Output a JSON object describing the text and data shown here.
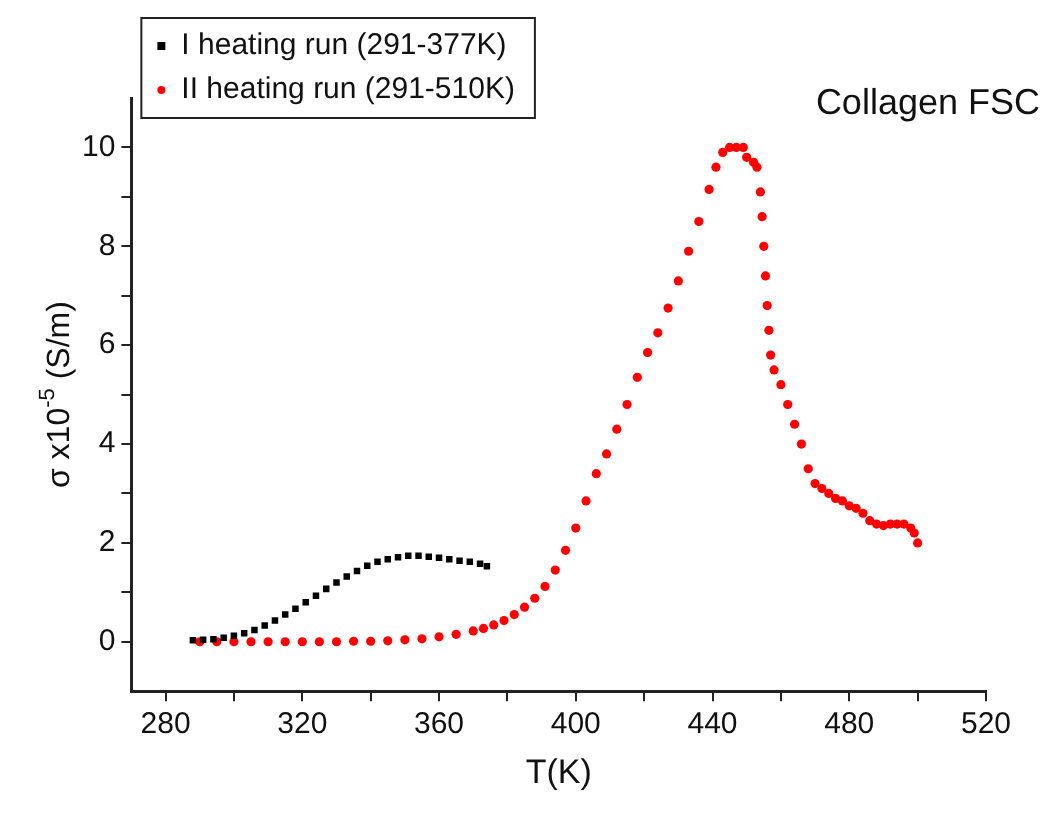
{
  "chart_data": {
    "type": "scatter",
    "title": "Collagen FSC",
    "xlabel": "T(K)",
    "ylabel": "σ x10$^{-5}$ (S/m)",
    "xlim": [
      270,
      520
    ],
    "xticks": [
      {
        "value": 280,
        "label": "280"
      },
      {
        "value": 300,
        "label": null
      },
      {
        "value": 320,
        "label": "320"
      },
      {
        "value": 340,
        "label": null
      },
      {
        "value": 360,
        "label": "360"
      },
      {
        "value": 380,
        "label": null
      },
      {
        "value": 400,
        "label": "400"
      },
      {
        "value": 420,
        "label": null
      },
      {
        "value": 440,
        "label": "440"
      },
      {
        "value": 460,
        "label": null
      },
      {
        "value": 480,
        "label": "480"
      },
      {
        "value": 500,
        "label": null
      },
      {
        "value": 520,
        "label": "520"
      }
    ],
    "ylim": [
      -1,
      11
    ],
    "yticks": [
      {
        "value": 0,
        "label": "0"
      },
      {
        "value": 1,
        "label": null
      },
      {
        "value": 2,
        "label": "2"
      },
      {
        "value": 3,
        "label": null
      },
      {
        "value": 4,
        "label": "4"
      },
      {
        "value": 5,
        "label": null
      },
      {
        "value": 6,
        "label": "6"
      },
      {
        "value": 7,
        "label": null
      },
      {
        "value": 8,
        "label": "8"
      },
      {
        "value": 9,
        "label": null
      },
      {
        "value": 10,
        "label": "10"
      }
    ],
    "grid": false,
    "legend": "top left",
    "series": [
      {
        "name": "I heating run (291-377K)",
        "color": "#000000",
        "marker": "square",
        "x": [
          288,
          291,
          294,
          297,
          300,
          303,
          306,
          309,
          312,
          315,
          318,
          321,
          324,
          327,
          330,
          333,
          336,
          339,
          342,
          345,
          348,
          351,
          354,
          357,
          360,
          363,
          366,
          369,
          372,
          374
        ],
        "values": [
          0.03,
          0.04,
          0.05,
          0.08,
          0.12,
          0.17,
          0.24,
          0.33,
          0.43,
          0.55,
          0.67,
          0.8,
          0.93,
          1.07,
          1.2,
          1.32,
          1.43,
          1.54,
          1.62,
          1.67,
          1.71,
          1.74,
          1.74,
          1.72,
          1.7,
          1.67,
          1.64,
          1.62,
          1.58,
          1.53
        ]
      },
      {
        "name": "II heating run (291-510K)",
        "color": "#ff0000",
        "marker": "circle",
        "x": [
          290,
          295,
          300,
          305,
          310,
          315,
          320,
          325,
          330,
          335,
          340,
          345,
          350,
          355,
          360,
          365,
          370,
          373,
          376,
          379,
          382,
          385,
          388,
          391,
          394,
          397,
          400,
          403,
          406,
          409,
          412,
          415,
          418,
          421,
          424,
          427,
          430,
          433,
          436,
          439,
          441,
          443,
          445,
          447,
          449,
          450,
          452,
          453,
          454,
          454.5,
          455,
          455.5,
          456,
          456.5,
          457,
          458,
          460,
          462,
          464,
          466,
          468,
          470,
          472,
          474,
          476,
          478,
          480,
          482,
          484,
          486,
          488,
          490,
          492,
          494,
          496,
          498,
          499,
          500
        ],
        "values": [
          0,
          0,
          0,
          0,
          0,
          0,
          0,
          0,
          0,
          0.01,
          0.01,
          0.02,
          0.04,
          0.06,
          0.1,
          0.15,
          0.22,
          0.27,
          0.34,
          0.43,
          0.55,
          0.7,
          0.88,
          1.12,
          1.45,
          1.85,
          2.3,
          2.85,
          3.4,
          3.8,
          4.3,
          4.8,
          5.35,
          5.85,
          6.25,
          6.75,
          7.3,
          7.9,
          8.5,
          9.15,
          9.6,
          9.9,
          10,
          10,
          10,
          9.8,
          9.7,
          9.6,
          9.1,
          8.6,
          8,
          7.4,
          6.8,
          6.3,
          5.8,
          5.5,
          5.2,
          4.8,
          4.4,
          4,
          3.5,
          3.2,
          3.1,
          3,
          2.9,
          2.85,
          2.75,
          2.7,
          2.6,
          2.45,
          2.38,
          2.35,
          2.38,
          2.38,
          2.38,
          2.3,
          2.2,
          2
        ]
      }
    ]
  }
}
